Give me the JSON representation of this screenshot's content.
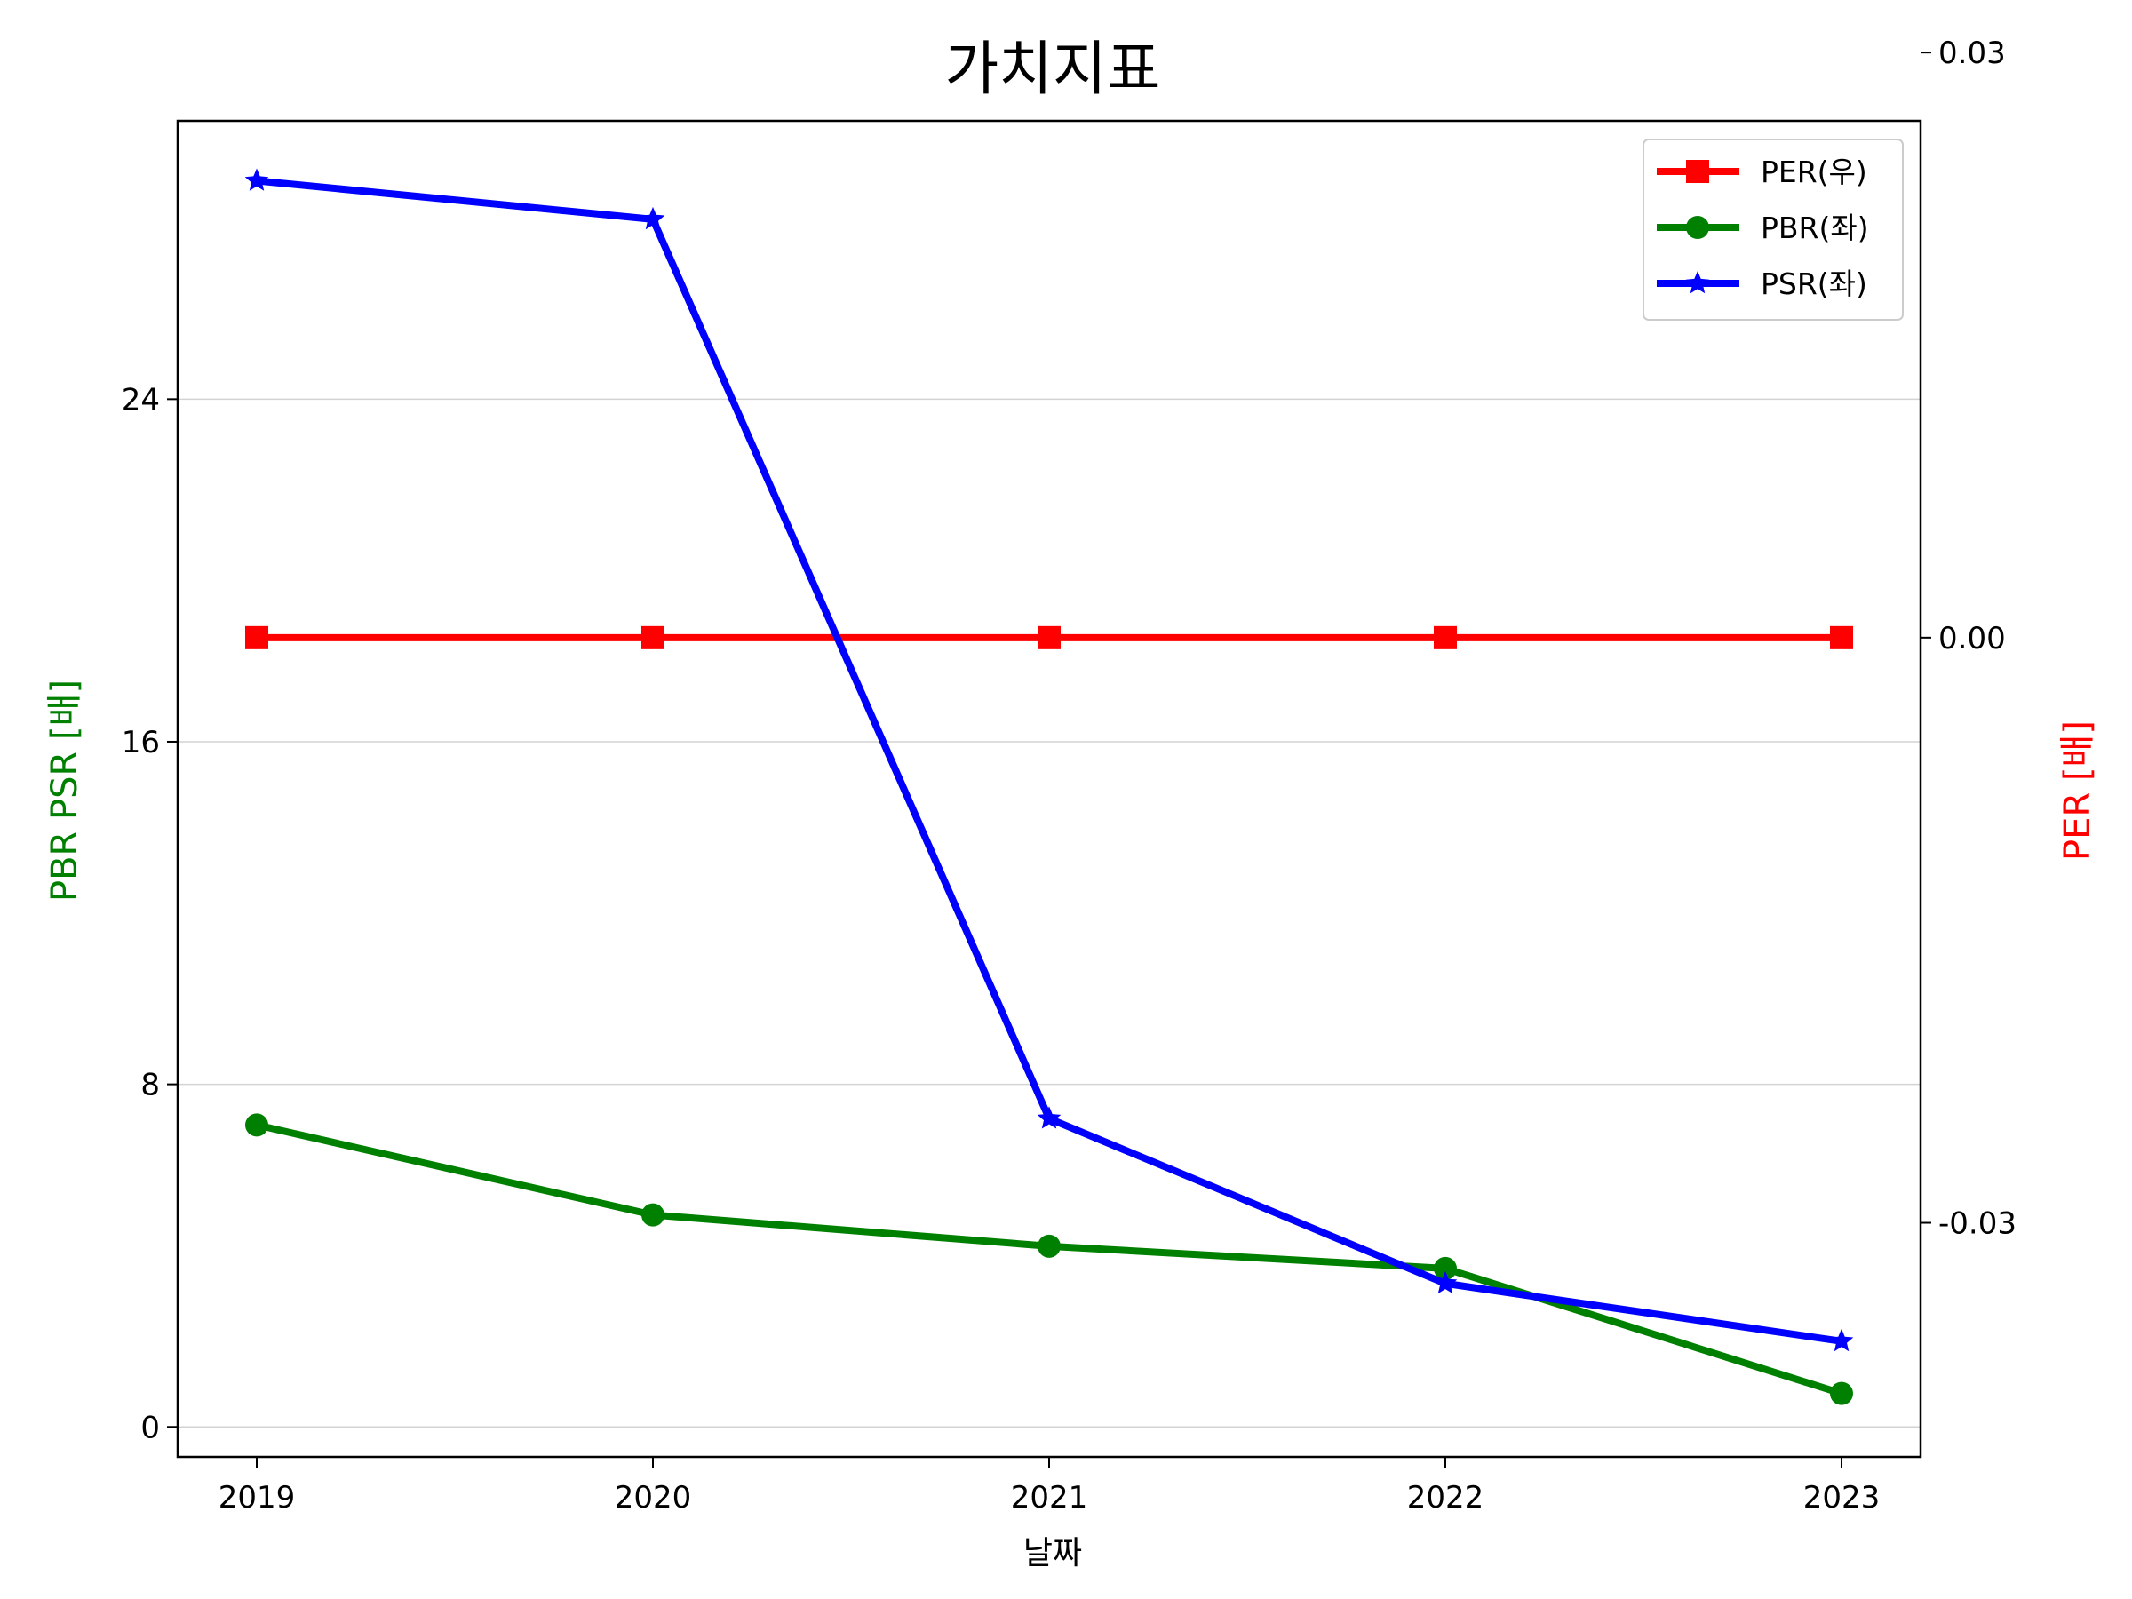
{
  "chart_data": {
    "type": "line",
    "title": "가치지표",
    "xlabel": "날짜",
    "ylabel_left": "PBR PSR [배]",
    "ylabel_right": "PER [배]",
    "categories": [
      "2019",
      "2020",
      "2021",
      "2022",
      "2023"
    ],
    "y_left": {
      "lim": [
        -0.7,
        30.5
      ],
      "ticks": [
        0,
        8,
        16,
        24
      ],
      "tick_labels": [
        "0",
        "8",
        "16",
        "24"
      ]
    },
    "y_right": {
      "lim": [
        -0.042,
        0.0265
      ],
      "ticks": [
        -0.03,
        0.0,
        0.03
      ],
      "tick_labels": [
        "-0.03",
        "0.00",
        "0.03"
      ]
    },
    "grid": true,
    "legend_position": "top-right",
    "series": [
      {
        "name": "PER(우)",
        "axis": "right",
        "color": "#ff0000",
        "marker": "square",
        "values": [
          0,
          0,
          0,
          0,
          0
        ]
      },
      {
        "name": "PBR(좌)",
        "axis": "left",
        "color": "#008000",
        "marker": "circle",
        "values": [
          7.05,
          4.95,
          4.22,
          3.7,
          0.78
        ]
      },
      {
        "name": "PSR(좌)",
        "axis": "left",
        "color": "#0000ff",
        "marker": "star",
        "values": [
          29.1,
          28.2,
          7.2,
          3.35,
          2.0
        ]
      }
    ]
  }
}
